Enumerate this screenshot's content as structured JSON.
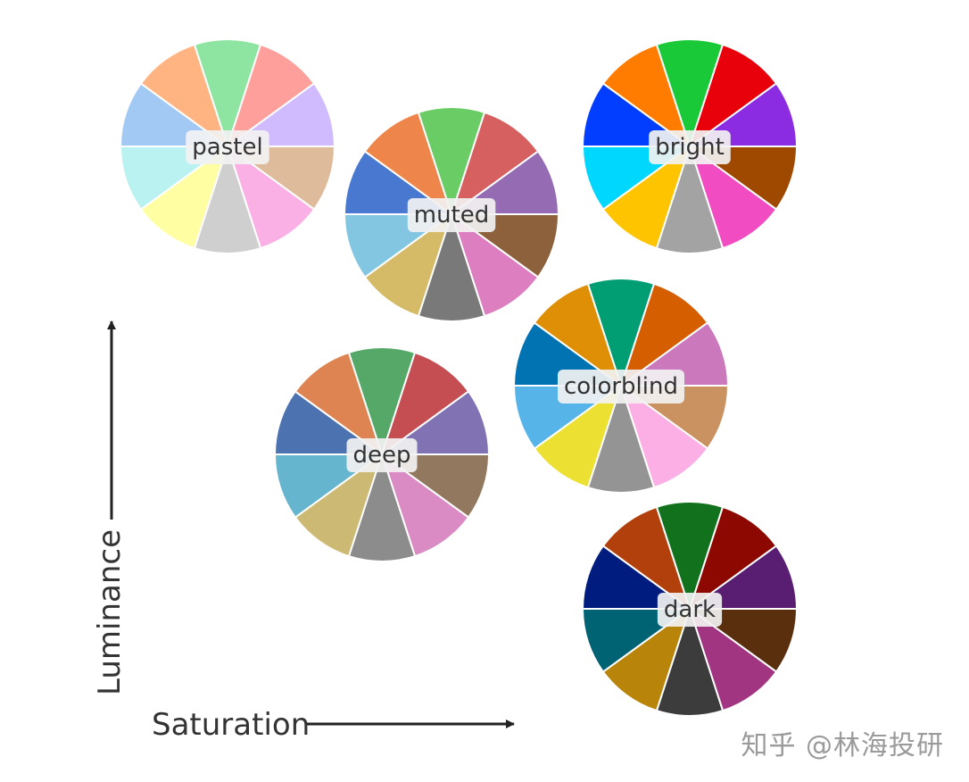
{
  "palettes": [
    {
      "name": "pastel",
      "colors": [
        "#a1c9f4",
        "#ffb482",
        "#8de5a1",
        "#ff9f9b",
        "#d0bbff",
        "#debb9b",
        "#fab0e4",
        "#cfcfcf",
        "#fffea3",
        "#b9f2f0"
      ]
    },
    {
      "name": "muted",
      "colors": [
        "#4878d0",
        "#ee854a",
        "#6acc64",
        "#d65f5f",
        "#956cb4",
        "#8c613c",
        "#dc7ec0",
        "#797979",
        "#d5bb67",
        "#82c6e2"
      ]
    },
    {
      "name": "bright",
      "colors": [
        "#023eff",
        "#ff7c00",
        "#1ac938",
        "#e8000b",
        "#8b2be2",
        "#9f4800",
        "#f14cc1",
        "#a3a3a3",
        "#ffc400",
        "#00d7ff"
      ]
    },
    {
      "name": "deep",
      "colors": [
        "#4c72b0",
        "#dd8452",
        "#55a868",
        "#c44e52",
        "#8172b3",
        "#937860",
        "#da8bc3",
        "#8c8c8c",
        "#ccb974",
        "#64b5cd"
      ]
    },
    {
      "name": "colorblind",
      "colors": [
        "#0173b2",
        "#de8f05",
        "#029e73",
        "#d55e00",
        "#cc78bc",
        "#ca9161",
        "#fbafe4",
        "#949494",
        "#ece133",
        "#56b4e9"
      ]
    },
    {
      "name": "dark",
      "colors": [
        "#001c7f",
        "#b1400d",
        "#12711c",
        "#8c0800",
        "#591e71",
        "#592f0d",
        "#a23582",
        "#3c3c3c",
        "#b8850a",
        "#006374"
      ]
    }
  ],
  "axes": {
    "vertical_label": "Luminance",
    "horizontal_label": "Saturation"
  },
  "watermark": "知乎 @林海投研",
  "colors": {
    "axis": "#222222",
    "label_box": "#f2f2f2",
    "label_text": "#333333",
    "wedge_stroke": "#ffffff"
  }
}
